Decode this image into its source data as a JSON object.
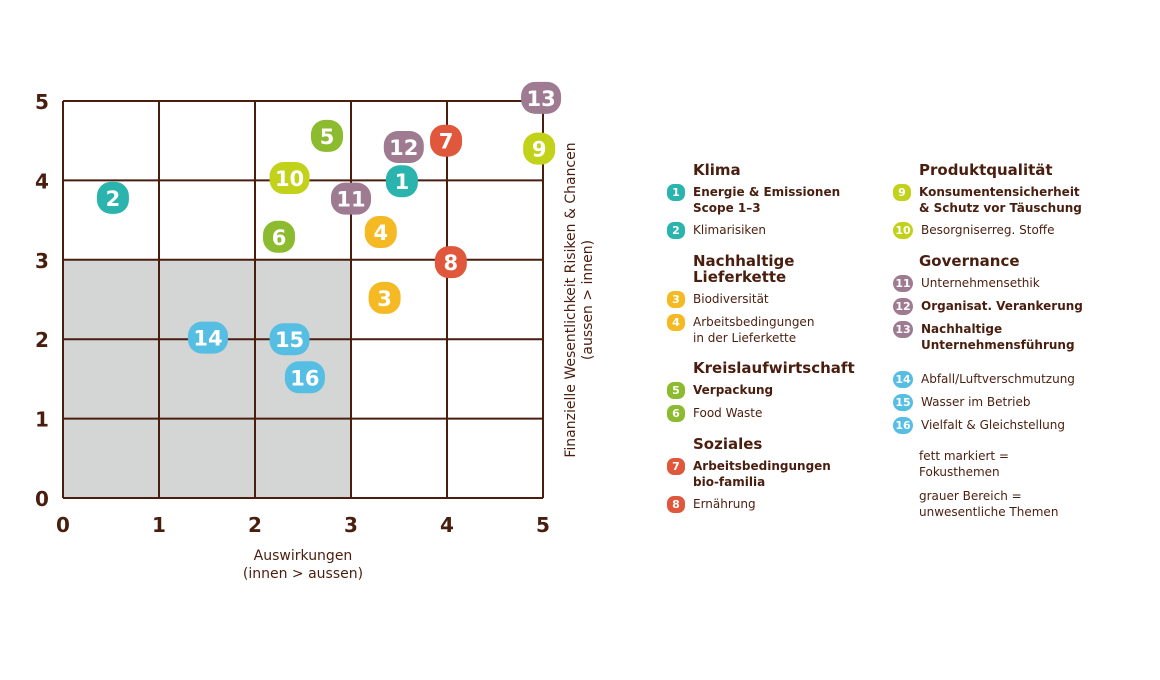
{
  "chart_data": {
    "type": "scatter",
    "title": "",
    "xlabel": "Auswirkungen",
    "xlabel_sub": "(innen > aussen)",
    "ylabel": "Finanzielle Wesentlichkeit  Risiken & Chancen",
    "ylabel_sub": "(aussen > innen)",
    "xlim": [
      0,
      5
    ],
    "ylim": [
      0,
      5
    ],
    "xticks": [
      "0",
      "1",
      "2",
      "3",
      "4",
      "5"
    ],
    "yticks": [
      "0",
      "1",
      "2",
      "3",
      "4",
      "5"
    ],
    "grid": true,
    "shaded_region": {
      "x": [
        0,
        3
      ],
      "y": [
        0,
        3
      ],
      "color": "#d3d6d4"
    },
    "colors": {
      "klima": "#2bb3ad",
      "lieferkette": "#f5b923",
      "kreislauf": "#8dbb2f",
      "soziales": "#e0573c",
      "produkt": "#c2d11a",
      "governance": "#9e7b91",
      "umwelt": "#56bde3",
      "axis": "#4a1e0f"
    },
    "points": [
      {
        "id": "1",
        "x": 3.53,
        "y": 3.99,
        "group": "klima"
      },
      {
        "id": "2",
        "x": 0.52,
        "y": 3.78,
        "group": "klima"
      },
      {
        "id": "3",
        "x": 3.35,
        "y": 2.52,
        "group": "lieferkette"
      },
      {
        "id": "4",
        "x": 3.31,
        "y": 3.35,
        "group": "lieferkette"
      },
      {
        "id": "5",
        "x": 2.75,
        "y": 4.56,
        "group": "kreislauf"
      },
      {
        "id": "6",
        "x": 2.25,
        "y": 3.29,
        "group": "kreislauf"
      },
      {
        "id": "7",
        "x": 3.99,
        "y": 4.5,
        "group": "soziales"
      },
      {
        "id": "8",
        "x": 4.04,
        "y": 2.97,
        "group": "soziales"
      },
      {
        "id": "9",
        "x": 4.96,
        "y": 4.4,
        "group": "produkt"
      },
      {
        "id": "10",
        "x": 2.36,
        "y": 4.03,
        "group": "produkt"
      },
      {
        "id": "11",
        "x": 3.0,
        "y": 3.77,
        "group": "governance"
      },
      {
        "id": "12",
        "x": 3.55,
        "y": 4.42,
        "group": "governance"
      },
      {
        "id": "13",
        "x": 4.98,
        "y": 5.04,
        "group": "governance"
      },
      {
        "id": "14",
        "x": 1.51,
        "y": 2.02,
        "group": "umwelt"
      },
      {
        "id": "15",
        "x": 2.36,
        "y": 2.0,
        "group": "umwelt"
      },
      {
        "id": "16",
        "x": 2.52,
        "y": 1.52,
        "group": "umwelt"
      }
    ]
  },
  "legend": {
    "left": [
      {
        "title": "Klima",
        "color": "#2bb3ad",
        "items": [
          {
            "id": "1",
            "label": "Energie & Emissionen",
            "label2": "Scope 1–3",
            "bold": true
          },
          {
            "id": "2",
            "label": "Klimarisiken",
            "bold": false
          }
        ]
      },
      {
        "title": "Nachhaltige Lieferkette",
        "color": "#f5b923",
        "items": [
          {
            "id": "3",
            "label": "Biodiversität",
            "bold": false
          },
          {
            "id": "4",
            "label": "Arbeitsbedingungen",
            "label2": "in der Lieferkette",
            "bold": false
          }
        ]
      },
      {
        "title": "Kreislaufwirtschaft",
        "color": "#8dbb2f",
        "items": [
          {
            "id": "5",
            "label": "Verpackung",
            "bold": true
          },
          {
            "id": "6",
            "label": "Food Waste",
            "bold": false
          }
        ]
      },
      {
        "title": "Soziales",
        "color": "#e0573c",
        "items": [
          {
            "id": "7",
            "label": "Arbeitsbedingungen",
            "label2": "bio-familia",
            "bold": true
          },
          {
            "id": "8",
            "label": "Ernährung",
            "bold": false
          }
        ]
      }
    ],
    "right": [
      {
        "title": "Produktqualität",
        "color": "#c2d11a",
        "items": [
          {
            "id": "9",
            "label": "Konsumentensicherheit",
            "label2": "& Schutz vor Täuschung",
            "bold": true
          },
          {
            "id": "10",
            "label": "Besorgniserreg. Stoffe",
            "bold": false
          }
        ]
      },
      {
        "title": "Governance",
        "color": "#9e7b91",
        "items": [
          {
            "id": "11",
            "label": "Unternehmensethik",
            "bold": false
          },
          {
            "id": "12",
            "label": "Organisat. Verankerung",
            "bold": true
          },
          {
            "id": "13",
            "label": "Nachhaltige",
            "label2": "Unternehmensführung",
            "bold": true
          }
        ]
      },
      {
        "title": "",
        "color": "#56bde3",
        "items": [
          {
            "id": "14",
            "label": "Abfall/Luftverschmutzung",
            "bold": false
          },
          {
            "id": "15",
            "label": "Wasser im Betrieb",
            "bold": false
          },
          {
            "id": "16",
            "label": "Vielfalt & Gleichstellung",
            "bold": false
          }
        ]
      }
    ],
    "notes": [
      {
        "line1": "fett markiert =",
        "line2": "Fokusthemen"
      },
      {
        "line1": "grauer Bereich =",
        "line2": "unwesentliche Themen"
      }
    ]
  }
}
